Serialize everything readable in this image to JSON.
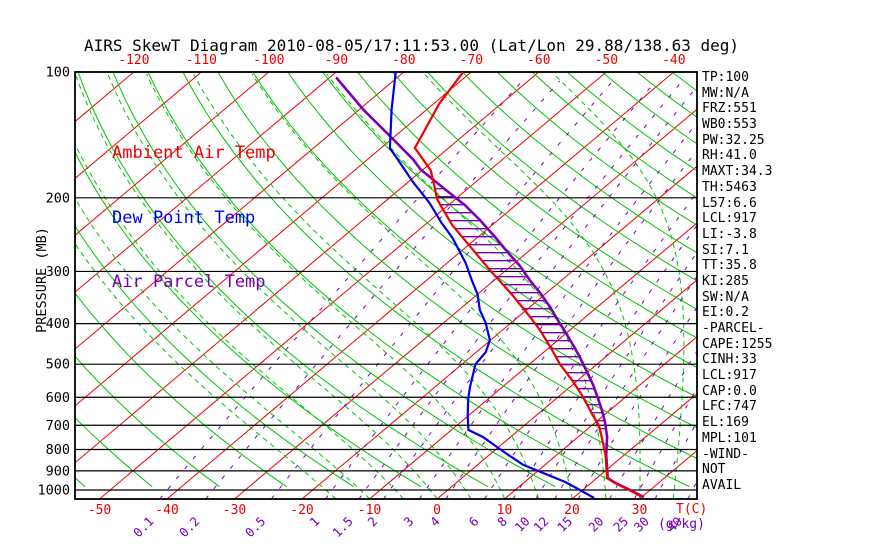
{
  "title": "AIRS SkewT Diagram 2010-08-05/17:11:53.00 (Lat/Lon 29.88/138.63 deg)",
  "legend": {
    "items": [
      {
        "label": "Ambient Air Temp",
        "color": "#EE0000"
      },
      {
        "label": "Dew Point Temp",
        "color": "#0000EE"
      },
      {
        "label": "Air Parcel Temp",
        "color": "#7A00B4"
      }
    ]
  },
  "axes": {
    "pressure_axis_label": "PRESSURE (MB)",
    "pressure_ticks": [
      100,
      200,
      300,
      400,
      500,
      600,
      700,
      800,
      900,
      1000
    ],
    "top_temperature_ticks": [
      -120,
      -110,
      -100,
      -90,
      -80,
      -70,
      -60,
      -50,
      -40
    ],
    "bottom_temperature_ticks": [
      -50,
      -40,
      -30,
      -20,
      -10,
      0,
      10,
      20,
      30
    ],
    "temperature_unit_label": "T(C)",
    "mixing_ratio_labels": [
      "0.1",
      "0.2",
      "0.5",
      "1",
      "1.5",
      "2",
      "3",
      "4",
      "6",
      "8",
      "10",
      "12",
      "15",
      "20",
      "25",
      "30",
      "40"
    ],
    "mixing_ratio_unit_label": "(g/kg)"
  },
  "stats_panel": {
    "lines": [
      "TP:100",
      "MW:N/A",
      "FRZ:551",
      "WB0:553",
      "PW:32.25",
      "RH:41.0",
      "MAXT:34.3",
      "TH:5463",
      "L57:6.6",
      "LCL:917",
      "LI:-3.8",
      "SI:7.1",
      "TT:35.8",
      "KI:285",
      "SW:N/A",
      "EI:0.2",
      "-PARCEL-",
      "CAPE:1255",
      "CINH:33",
      "LCL:917",
      "CAP:0.0",
      "LFC:747",
      "EL:169",
      "MPL:101",
      "-WIND-",
      "NOT",
      "AVAIL"
    ]
  },
  "colors": {
    "red": "#EE0000",
    "green": "#00C400",
    "blue": "#0000EE",
    "purple": "#7A00B4",
    "black": "#000000"
  },
  "chart_data": {
    "type": "line",
    "title": "AIRS SkewT Diagram 2010-08-05/17:11:53.00 (Lat/Lon 29.88/138.63 deg)",
    "xlabel": "Temperature (C), skewed isotherms",
    "ylabel": "Pressure (MB), logarithmic 100-1050",
    "x_range_at_surface_C": [
      -53,
      38
    ],
    "pressure_range_mb": [
      100,
      1050
    ],
    "grid": "skew-t log-p background (isotherms, dry/moist adiabats, mixing ratio lines)",
    "legend_position": "upper-left inside plot",
    "series": [
      {
        "name": "Ambient Air Temp",
        "color_key": "red",
        "points_mb_c": [
          [
            100,
            -71.2
          ],
          [
            119,
            -69.2
          ],
          [
            152,
            -65.0
          ],
          [
            172,
            -58.7
          ],
          [
            202,
            -52.6
          ],
          [
            232,
            -46.0
          ],
          [
            262,
            -39.4
          ],
          [
            299,
            -32.2
          ],
          [
            341,
            -24.8
          ],
          [
            387,
            -18.0
          ],
          [
            414,
            -14.5
          ],
          [
            462,
            -9.2
          ],
          [
            500,
            -5.5
          ],
          [
            546,
            -0.9
          ],
          [
            599,
            3.7
          ],
          [
            662,
            8.3
          ],
          [
            700,
            11.0
          ],
          [
            747,
            13.5
          ],
          [
            824,
            17.2
          ],
          [
            936,
            21.5
          ],
          [
            957,
            23.1
          ],
          [
            1000,
            26.9
          ],
          [
            1039,
            30.0
          ]
        ]
      },
      {
        "name": "Dew Point Temp",
        "color_key": "blue",
        "points_mb_c": [
          [
            100,
            -81.2
          ],
          [
            123,
            -75.2
          ],
          [
            152,
            -68.7
          ],
          [
            162,
            -65.5
          ],
          [
            173,
            -62.2
          ],
          [
            183,
            -59.4
          ],
          [
            195,
            -56.0
          ],
          [
            206,
            -53.1
          ],
          [
            230,
            -47.8
          ],
          [
            249,
            -43.7
          ],
          [
            264,
            -41.0
          ],
          [
            286,
            -37.3
          ],
          [
            315,
            -33.3
          ],
          [
            341,
            -29.9
          ],
          [
            371,
            -26.9
          ],
          [
            398,
            -23.8
          ],
          [
            438,
            -20.1
          ],
          [
            468,
            -18.6
          ],
          [
            500,
            -18.0
          ],
          [
            567,
            -14.8
          ],
          [
            605,
            -13.0
          ],
          [
            662,
            -10.2
          ],
          [
            718,
            -7.5
          ],
          [
            747,
            -4.1
          ],
          [
            815,
            2.0
          ],
          [
            871,
            6.8
          ],
          [
            910,
            11.1
          ],
          [
            957,
            16.0
          ],
          [
            1000,
            19.6
          ],
          [
            1045,
            23.1
          ]
        ]
      },
      {
        "name": "Air Parcel Temp",
        "color_key": "purple",
        "points_mb_c": [
          [
            103,
            -89.1
          ],
          [
            123,
            -79.4
          ],
          [
            144,
            -70.1
          ],
          [
            162,
            -63.2
          ],
          [
            171,
            -60.4
          ],
          [
            191,
            -53.2
          ],
          [
            208,
            -47.6
          ],
          [
            226,
            -42.7
          ],
          [
            248,
            -37.5
          ],
          [
            270,
            -32.9
          ],
          [
            291,
            -28.7
          ],
          [
            315,
            -24.7
          ],
          [
            338,
            -20.9
          ],
          [
            365,
            -17.0
          ],
          [
            392,
            -13.6
          ],
          [
            421,
            -10.1
          ],
          [
            455,
            -6.4
          ],
          [
            483,
            -3.6
          ],
          [
            522,
            -0.1
          ],
          [
            561,
            3.1
          ],
          [
            603,
            6.1
          ],
          [
            644,
            8.8
          ],
          [
            687,
            11.3
          ],
          [
            718,
            12.9
          ],
          [
            747,
            14.3
          ],
          [
            824,
            17.3
          ],
          [
            936,
            21.6
          ],
          [
            957,
            23.2
          ],
          [
            1000,
            27.0
          ],
          [
            1040,
            30.3
          ]
        ]
      }
    ],
    "background": {
      "isotherms_c": {
        "min": -130,
        "max": 50,
        "step": 10
      },
      "dry_adiabats_theta_k": {
        "min": 210,
        "max": 460,
        "step": 10
      },
      "moist_adiabats_surface_c": {
        "min": -15,
        "max": 40,
        "step": 5
      },
      "mixing_ratio_g_kg": [
        0.1,
        0.2,
        0.5,
        1,
        1.5,
        2,
        3,
        4,
        6,
        8,
        10,
        12,
        15,
        20,
        25,
        30,
        40
      ],
      "cape_hatch_between": [
        "Ambient Air Temp",
        "Air Parcel Temp"
      ],
      "cape_hatch_range_mb": [
        182,
        745
      ]
    }
  }
}
